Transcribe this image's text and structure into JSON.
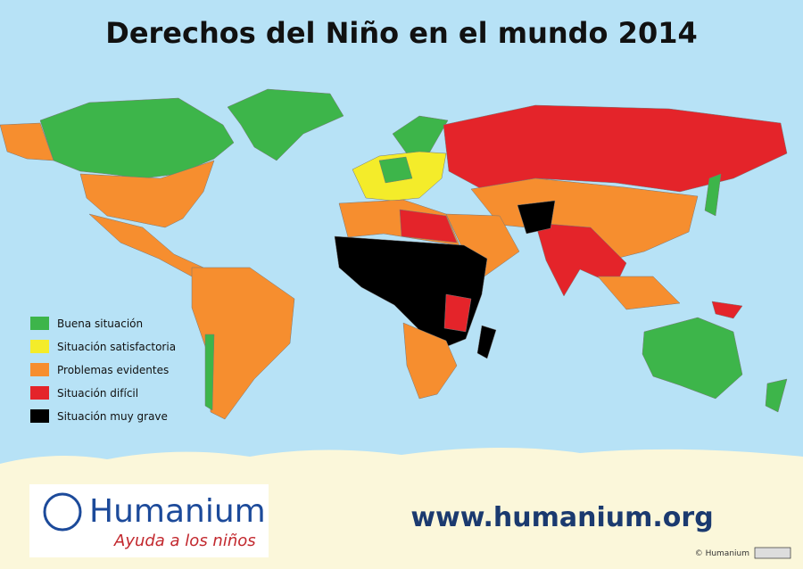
{
  "title": "Derechos del Niño en el mundo 2014",
  "legend": [
    {
      "label": "Buena situación",
      "color": "#3db54a"
    },
    {
      "label": "Situación satisfactoria",
      "color": "#f4ec2a"
    },
    {
      "label": "Problemas evidentes",
      "color": "#f68e2f"
    },
    {
      "label": "Situación difícil",
      "color": "#e4242a"
    },
    {
      "label": "Situación muy grave",
      "color": "#000000"
    }
  ],
  "logo": {
    "name": "Humanium",
    "tagline": "Ayuda a los niños"
  },
  "url": "www.humanium.org",
  "copyright": "© Humanium"
}
